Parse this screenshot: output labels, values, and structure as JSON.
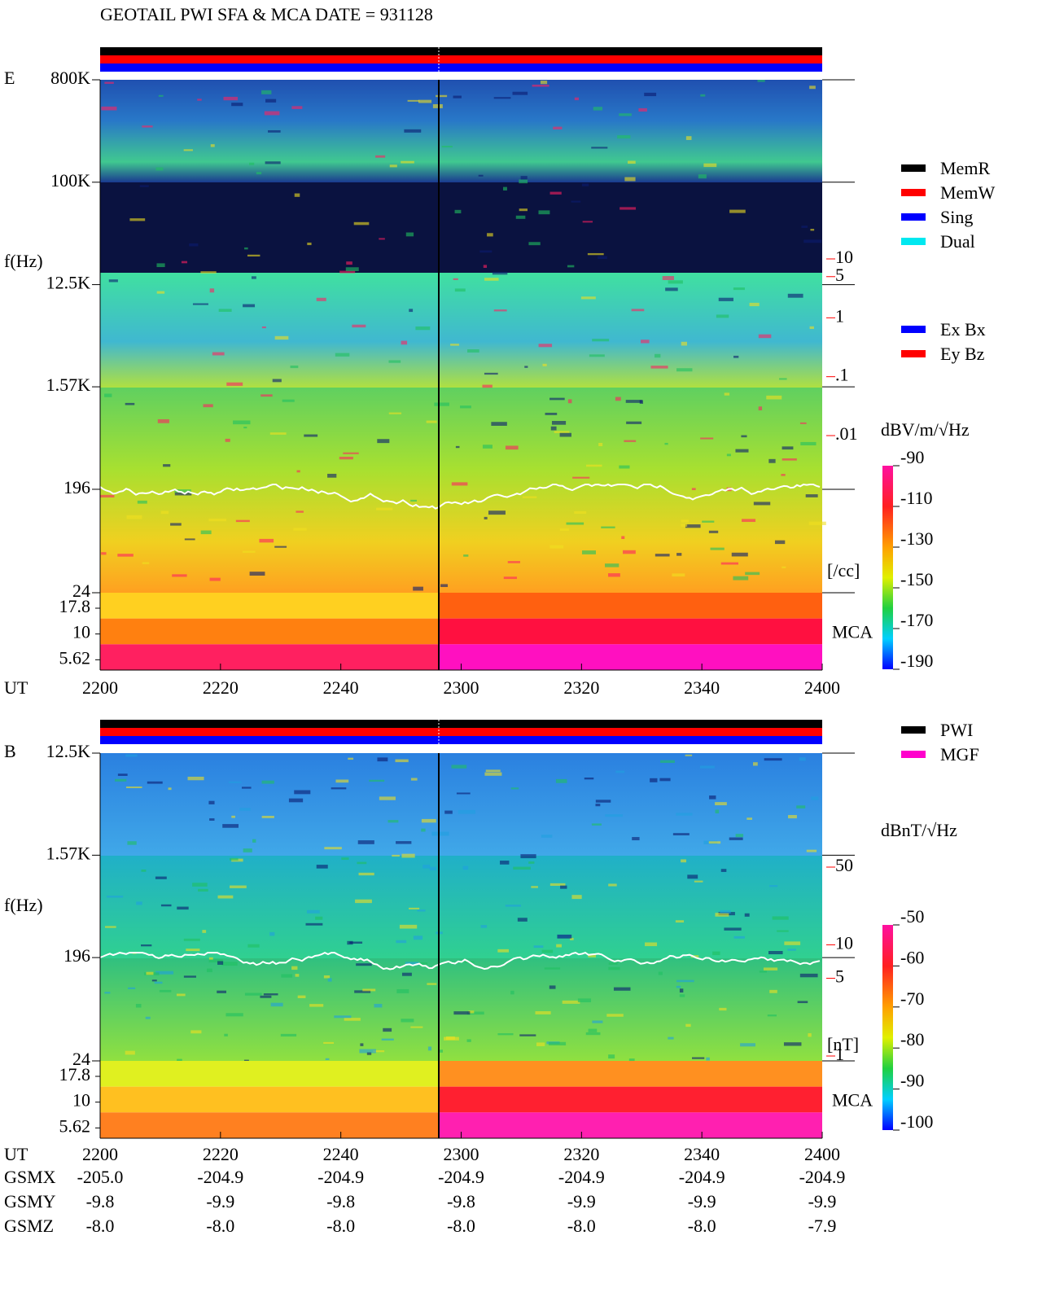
{
  "title": "GEOTAIL  PWI SFA & MCA   DATE = 931128",
  "chart_data": [
    {
      "type": "spectrogram",
      "panel_label": "E",
      "y_label": "f(Hz)",
      "log_y": true,
      "ylim": [
        24,
        800000
      ],
      "yticks": [
        {
          "value": 800000,
          "label": "800K"
        },
        {
          "value": 100000,
          "label": "100K"
        },
        {
          "value": 12500,
          "label": "12.5K"
        },
        {
          "value": 1570,
          "label": "1.57K"
        },
        196,
        24
      ],
      "mca_label": "MCA",
      "mca_ticks": [
        17.8,
        10,
        5.62
      ],
      "x_label": "UT",
      "x": [
        "2200",
        "2220",
        "2240",
        "2300",
        "2320",
        "2340",
        "2400"
      ],
      "y2lim": [
        0.01,
        10
      ],
      "y2ticks": [
        10,
        5,
        1,
        {
          "value": 0.1,
          "label": ".1"
        },
        {
          "value": 0.01,
          "label": ".01"
        }
      ],
      "y2_label": "[/cc]",
      "y2_color": "#ff0000",
      "colorbar": {
        "label": "dBV/m/√Hz",
        "lim": [
          -190,
          -90
        ],
        "ticks": [
          -90,
          -110,
          -130,
          -150,
          -170,
          -190
        ]
      },
      "legend": [
        {
          "name": "MemR",
          "color": "#000000"
        },
        {
          "name": "MemW",
          "color": "#ff0000"
        },
        {
          "name": "Sing",
          "color": "#0000ff"
        },
        {
          "name": "Dual",
          "color": "#00e8f0"
        }
      ],
      "legend2": [
        {
          "name": "Ex Bx",
          "color": "#0000ff"
        },
        {
          "name": "Ey Bz",
          "color": "#ff0000"
        }
      ]
    },
    {
      "type": "spectrogram",
      "panel_label": "B",
      "y_label": "f(Hz)",
      "log_y": true,
      "ylim": [
        24,
        12500
      ],
      "yticks": [
        {
          "value": 12500,
          "label": "12.5K"
        },
        {
          "value": 1570,
          "label": "1.57K"
        },
        196,
        24
      ],
      "mca_label": "MCA",
      "mca_ticks": [
        17.8,
        10,
        5.62
      ],
      "x_label": "UT",
      "x": [
        "2200",
        "2220",
        "2240",
        "2300",
        "2320",
        "2340",
        "2400"
      ],
      "y2lim": [
        1,
        50
      ],
      "y2ticks": [
        50,
        10,
        5,
        1
      ],
      "y2_label": "[nT]",
      "y2_color": "#ff0000",
      "colorbar": {
        "label": "dBnT/√Hz",
        "lim": [
          -100,
          -50
        ],
        "ticks": [
          -50,
          -60,
          -70,
          -80,
          -90,
          -100
        ]
      },
      "legend": [
        {
          "name": "PWI",
          "color": "#000000"
        },
        {
          "name": "MGF",
          "color": "#ff00cc"
        }
      ]
    }
  ],
  "orbit": {
    "labels": [
      "GSMX",
      "GSMY",
      "GSMZ"
    ],
    "rows": [
      [
        "-205.0",
        "-204.9",
        "-204.9",
        "-204.9",
        "-204.9",
        "-204.9",
        "-204.9"
      ],
      [
        "-9.8",
        "-9.9",
        "-9.8",
        "-9.8",
        "-9.9",
        "-9.9",
        "-9.9"
      ],
      [
        "-8.0",
        "-8.0",
        "-8.0",
        "-8.0",
        "-8.0",
        "-8.0",
        "-7.9"
      ]
    ]
  }
}
